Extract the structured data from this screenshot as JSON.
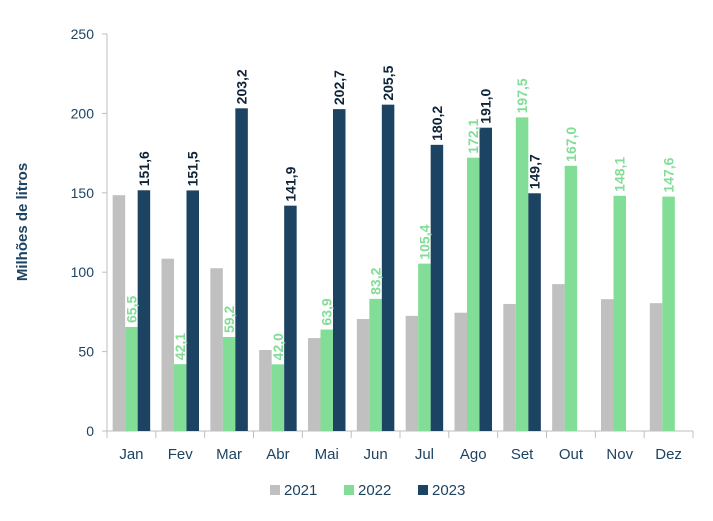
{
  "chart_data": {
    "type": "bar",
    "title": "",
    "xlabel": "",
    "ylabel": "Milhões de litros",
    "ylim": [
      0,
      250
    ],
    "yticks": [
      "0",
      "50",
      "100",
      "150",
      "200",
      "250"
    ],
    "categories": [
      "Jan",
      "Fev",
      "Mar",
      "Abr",
      "Mai",
      "Jun",
      "Jul",
      "Ago",
      "Set",
      "Out",
      "Nov",
      "Dez"
    ],
    "series": [
      {
        "name": "2021",
        "color": "#c0c0c0",
        "label_color": "#c0c0c0",
        "values": [
          148.5,
          108.5,
          102.5,
          51,
          58.5,
          70.5,
          72.5,
          74.5,
          80,
          92.5,
          83,
          80.5
        ],
        "labels": [
          "",
          "",
          "",
          "",
          "",
          "",
          "",
          "",
          "",
          "",
          "",
          ""
        ]
      },
      {
        "name": "2022",
        "color": "#82dd96",
        "label_color": "#82dd96",
        "values": [
          65.5,
          42.1,
          59.2,
          42.0,
          63.9,
          83.2,
          105.4,
          172.1,
          197.5,
          167.0,
          148.1,
          147.6
        ],
        "labels": [
          "65,5",
          "42,1",
          "59,2",
          "42,0",
          "63,9",
          "83,2",
          "105,4",
          "172,1",
          "197,5",
          "167,0",
          "148,1",
          "147,6"
        ]
      },
      {
        "name": "2023",
        "color": "#1d4363",
        "label_color": "#0e2338",
        "values": [
          151.6,
          151.5,
          203.2,
          141.9,
          202.7,
          205.5,
          180.2,
          191.0,
          149.7,
          null,
          null,
          null
        ],
        "labels": [
          "151,6",
          "151,5",
          "203,2",
          "141,9",
          "202,7",
          "205,5",
          "180,2",
          "191,0",
          "149,7",
          "",
          "",
          ""
        ]
      }
    ],
    "legend_position": "bottom-center",
    "grid": false
  }
}
